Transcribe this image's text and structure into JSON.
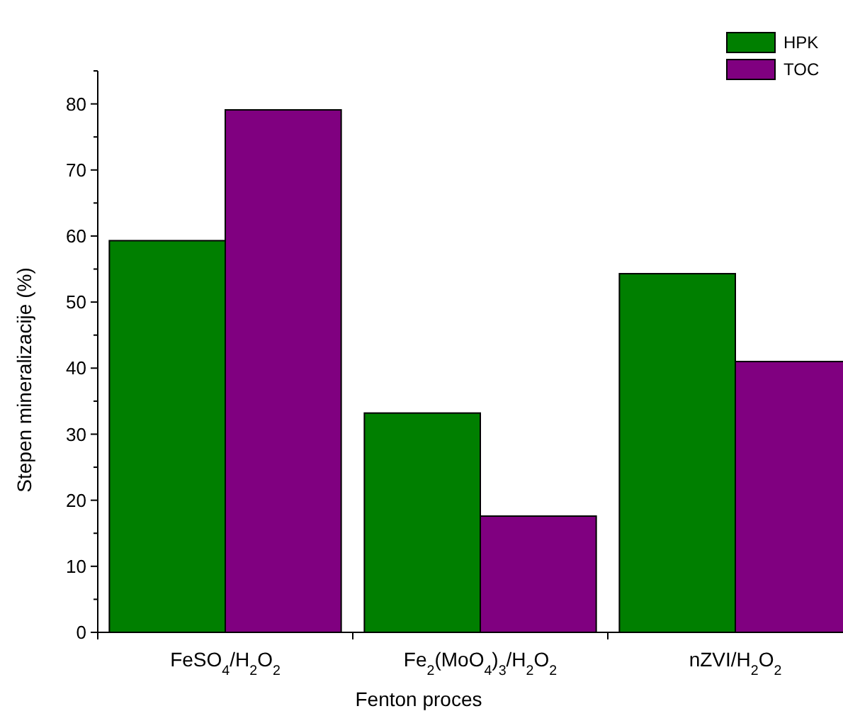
{
  "chart_data": {
    "type": "bar",
    "xlabel": "Fenton proces",
    "ylabel": "Stepen mineralizacije (%)",
    "categories": [
      "FeSO$_{4}$/H$_{2}$O$_{2}$",
      "Fe$_{2}$(MoO$_{4}$)$_{3}$/H$_{2}$O$_{2}$",
      "nZVI/H$_{2}$O$_{2}$"
    ],
    "series": [
      {
        "name": "HPK",
        "color": "#007f00",
        "values": [
          59.3,
          33.2,
          54.3
        ]
      },
      {
        "name": "TOC",
        "color": "#800080",
        "values": [
          79.1,
          17.6,
          41.0
        ]
      }
    ],
    "ylim": [
      0,
      85
    ],
    "yticks": [
      0,
      {
        "value": 5,
        "label": null
      },
      10,
      {
        "value": 15,
        "label": null
      },
      20,
      {
        "value": 25,
        "label": null
      },
      30,
      {
        "value": 35,
        "label": null
      },
      40,
      {
        "value": 45,
        "label": null
      },
      50,
      {
        "value": 55,
        "label": null
      },
      60,
      {
        "value": 65,
        "label": null
      },
      70,
      {
        "value": 75,
        "label": null
      },
      80,
      {
        "value": 85,
        "label": null
      }
    ],
    "grid": false,
    "legend": "top right"
  }
}
